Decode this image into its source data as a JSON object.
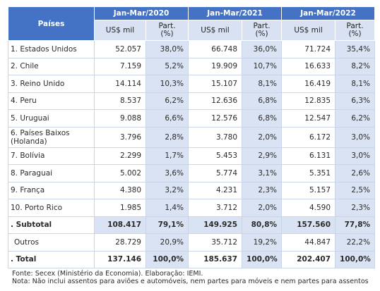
{
  "header": {
    "countries": "Países",
    "periods": [
      "Jan-Mar/2020",
      "Jan-Mar/2021",
      "Jan-Mar/2022"
    ],
    "value_label": "US$ mil",
    "part_label_1": "Part.",
    "part_label_2": "(%)"
  },
  "rows": [
    {
      "name": "1. Estados Unidos",
      "v": [
        "52.057",
        "38,0%",
        "66.748",
        "36,0%",
        "71.724",
        "35,4%"
      ]
    },
    {
      "name": "2. Chile",
      "v": [
        "7.159",
        "5,2%",
        "19.909",
        "10,7%",
        "16.633",
        "8,2%"
      ]
    },
    {
      "name": "3. Reino Unido",
      "v": [
        "14.114",
        "10,3%",
        "15.107",
        "8,1%",
        "16.419",
        "8,1%"
      ]
    },
    {
      "name": "4. Peru",
      "v": [
        "8.537",
        "6,2%",
        "12.636",
        "6,8%",
        "12.835",
        "6,3%"
      ]
    },
    {
      "name": "5. Uruguai",
      "v": [
        "9.088",
        "6,6%",
        "12.576",
        "6,8%",
        "12.547",
        "6,2%"
      ]
    },
    {
      "name": "6. Países Baixos",
      "name2": "(Holanda)",
      "v": [
        "3.796",
        "2,8%",
        "3.780",
        "2,0%",
        "6.172",
        "3,0%"
      ]
    },
    {
      "name": "7. Bolívia",
      "v": [
        "2.299",
        "1,7%",
        "5.453",
        "2,9%",
        "6.131",
        "3,0%"
      ]
    },
    {
      "name": "8. Paraguai",
      "v": [
        "5.002",
        "3,6%",
        "5.774",
        "3,1%",
        "5.351",
        "2,6%"
      ]
    },
    {
      "name": "9. França",
      "v": [
        "4.380",
        "3,2%",
        "4.231",
        "2,3%",
        "5.157",
        "2,5%"
      ]
    },
    {
      "name": "10. Porto Rico",
      "v": [
        "1.985",
        "1,4%",
        "3.712",
        "2,0%",
        "4.590",
        "2,3%"
      ]
    }
  ],
  "subtotal": {
    "name": ". Subtotal",
    "v": [
      "108.417",
      "79,1%",
      "149.925",
      "80,8%",
      "157.560",
      "77,8%"
    ]
  },
  "others": {
    "name": "Outros",
    "v": [
      "28.729",
      "20,9%",
      "35.712",
      "19,2%",
      "44.847",
      "22,2%"
    ]
  },
  "total": {
    "name": ". Total",
    "v": [
      "137.146",
      "100,0%",
      "185.637",
      "100,0%",
      "202.407",
      "100,0%"
    ]
  },
  "notes": {
    "source": "Fonte: Secex (Ministério da Economia). Elaboração: IEMI.",
    "note": "Nota: Não inclui assentos para aviões e automóveis, nem partes para móveis e nem partes para assentos"
  }
}
